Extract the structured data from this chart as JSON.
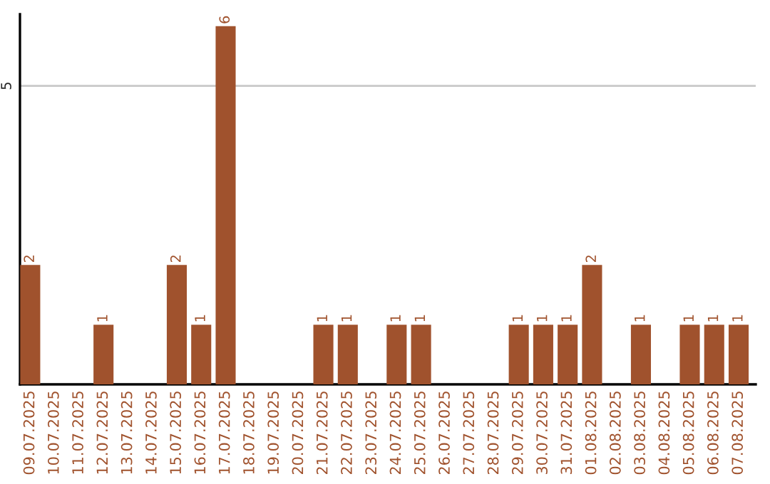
{
  "chart_data": {
    "type": "bar",
    "categories": [
      "09.07.2025",
      "10.07.2025",
      "11.07.2025",
      "12.07.2025",
      "13.07.2025",
      "14.07.2025",
      "15.07.2025",
      "16.07.2025",
      "17.07.2025",
      "18.07.2025",
      "19.07.2025",
      "20.07.2025",
      "21.07.2025",
      "22.07.2025",
      "23.07.2025",
      "24.07.2025",
      "25.07.2025",
      "26.07.2025",
      "27.07.2025",
      "28.07.2025",
      "29.07.2025",
      "30.07.2025",
      "31.07.2025",
      "01.08.2025",
      "02.08.2025",
      "03.08.2025",
      "04.08.2025",
      "05.08.2025",
      "06.08.2025",
      "07.08.2025"
    ],
    "values": [
      2,
      0,
      0,
      1,
      0,
      0,
      2,
      1,
      6,
      0,
      0,
      0,
      1,
      1,
      0,
      1,
      1,
      0,
      0,
      0,
      1,
      1,
      1,
      2,
      0,
      1,
      0,
      1,
      1,
      1
    ],
    "value_labels": [
      "2",
      null,
      null,
      "1",
      null,
      null,
      "2",
      "1",
      "6",
      null,
      null,
      null,
      "1",
      "1",
      null,
      "1",
      "1",
      null,
      null,
      null,
      "1",
      "1",
      "1",
      "2",
      null,
      "1",
      null,
      "1",
      "1",
      "1"
    ],
    "color": "#a0522d",
    "ylim": [
      0,
      6.2
    ],
    "yticks": [
      5
    ],
    "grid": "y"
  }
}
